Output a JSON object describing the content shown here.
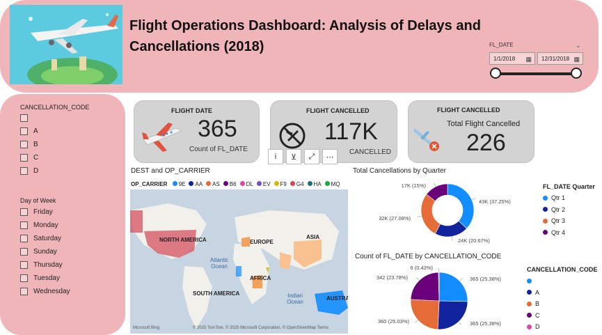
{
  "header": {
    "title": "Flight Operations Dashboard: Analysis of Delays and Cancellations (2018)",
    "date_filter": {
      "label": "FL_DATE",
      "start": "1/1/2018",
      "end": "12/31/2018"
    }
  },
  "slicers": {
    "cancellation_code": {
      "title": "CANCELLATION_CODE",
      "items": [
        "",
        "A",
        "B",
        "C",
        "D"
      ]
    },
    "day_of_week": {
      "title": "Day of Week",
      "items": [
        "Friday",
        "Monday",
        "Saturday",
        "Sunday",
        "Thursday",
        "Tuesday",
        "Wednesday"
      ]
    }
  },
  "cards": {
    "flight_date": {
      "title": "FLIGHT DATE",
      "value": "365",
      "caption": "Count of FL_DATE"
    },
    "flight_cancelled": {
      "title": "FLIGHT CANCELLED",
      "value": "117K",
      "caption": "CANCELLED"
    },
    "total_cancelled": {
      "title": "FLIGHT CANCELLED",
      "subtitle": "Total Flight Cancelled",
      "value": "226"
    }
  },
  "map": {
    "title": "DEST and OP_CARRIER",
    "legend_title": "OP_CARRIER",
    "carriers": [
      {
        "name": "9E",
        "color": "#118dff"
      },
      {
        "name": "AA",
        "color": "#12239e"
      },
      {
        "name": "AS",
        "color": "#e66c37"
      },
      {
        "name": "B6",
        "color": "#6b007b"
      },
      {
        "name": "DL",
        "color": "#e044a7"
      },
      {
        "name": "EV",
        "color": "#744ec2"
      },
      {
        "name": "F9",
        "color": "#d9b300"
      },
      {
        "name": "G4",
        "color": "#d64550"
      },
      {
        "name": "HA",
        "color": "#197278"
      },
      {
        "name": "MQ",
        "color": "#1aab40"
      }
    ],
    "labels": {
      "north_america": "NORTH AMERICA",
      "europe": "EUROPE",
      "asia": "ASIA",
      "africa": "AFRICA",
      "south_america": "SOUTH AMERICA",
      "atlantic": "Atlantic Ocean",
      "indian": "Indian Ocean",
      "australia": "AUSTRA"
    },
    "attribution": "© 2025 TomTom, © 2025 Microsoft Corporation, © OpenStreetMap  Terms",
    "bing": "Microsoft Bing",
    "controls": {
      "info": "i",
      "filter": "⊻",
      "focus": "⤢",
      "more": "⋯"
    }
  },
  "chart_data": [
    {
      "type": "pie",
      "title": "Total Cancellations by Quarter",
      "legend_title": "FL_DATE Quarter",
      "legend_position": "right",
      "donut": true,
      "slices": [
        {
          "label": "Qtr 1",
          "value": 43000,
          "text": "43K (37.25%)",
          "color": "#118dff"
        },
        {
          "label": "Qtr 2",
          "value": 24000,
          "text": "24K (20.67%)",
          "color": "#12239e"
        },
        {
          "label": "Qtr 3",
          "value": 32000,
          "text": "32K (27.08%)",
          "color": "#e66c37"
        },
        {
          "label": "Qtr 4",
          "value": 17000,
          "text": "17K (15%)",
          "color": "#6b007b"
        }
      ]
    },
    {
      "type": "pie",
      "title": "Count of FL_DATE by CANCELLATION_CODE",
      "legend_title": "CANCELLATION_CODE",
      "legend_position": "right",
      "donut": false,
      "slices": [
        {
          "label": "",
          "value": 365,
          "text": "365 (25.38%)",
          "color": "#118dff"
        },
        {
          "label": "A",
          "value": 365,
          "text": "365 (25.38%)",
          "color": "#12239e"
        },
        {
          "label": "B",
          "value": 360,
          "text": "360 (25.03%)",
          "color": "#e66c37"
        },
        {
          "label": "C",
          "value": 342,
          "text": "342 (23.78%)",
          "color": "#6b007b"
        },
        {
          "label": "D",
          "value": 6,
          "text": "6 (0.42%)",
          "color": "#e044a7"
        }
      ]
    }
  ]
}
